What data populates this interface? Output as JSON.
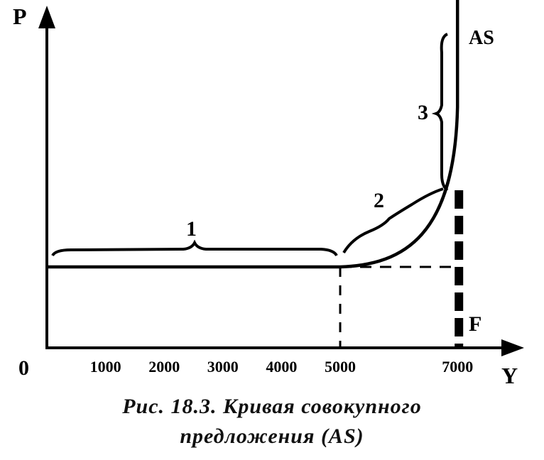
{
  "chart_data": {
    "type": "line",
    "title": "",
    "xlabel": "Y",
    "ylabel": "P",
    "origin_label": "0",
    "x_ticks": [
      "1000",
      "2000",
      "3000",
      "4000",
      "5000",
      "7000"
    ],
    "xlim": [
      0,
      7500
    ],
    "series": [
      {
        "name": "AS",
        "x": [
          0,
          1000,
          2000,
          3000,
          4000,
          5000,
          5500,
          6000,
          6500,
          6800,
          7000,
          7000
        ],
        "y": [
          1,
          1,
          1,
          1,
          1,
          1,
          1.05,
          1.2,
          1.5,
          1.9,
          2.5,
          4.5
        ]
      }
    ],
    "segments": [
      {
        "label": "1",
        "from_x": 0,
        "to_x": 5000
      },
      {
        "label": "2",
        "from_x": 5000,
        "to_x": 7000
      },
      {
        "label": "3",
        "from_x": 7000,
        "to_x": 7000
      }
    ],
    "vertical_line_label": "F",
    "reference_x": [
      5000,
      7000
    ]
  },
  "caption": {
    "line1": "Рис. 18.3. Кривая совокупного",
    "line2": "предложения (AS)"
  }
}
